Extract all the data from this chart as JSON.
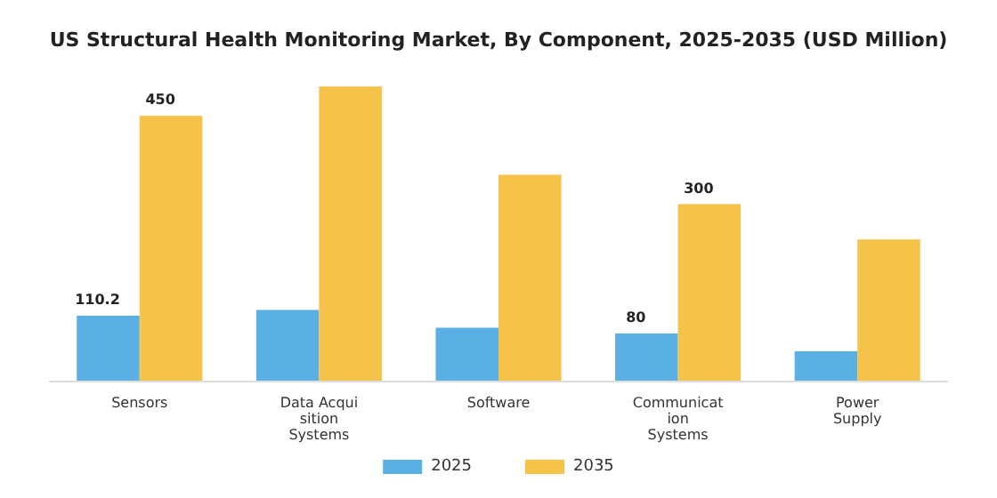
{
  "chart_data": {
    "type": "bar",
    "title": "US Structural Health Monitoring Market, By Component, 2025-2035 (USD Million)",
    "categories": [
      "Sensors",
      "Data Acqui\nsition\nSystems",
      "Software",
      "Communicat\nion\nSystems",
      "Power\nSupply"
    ],
    "series": [
      {
        "name": "2025",
        "color": "#5aafe3",
        "values": [
          110.2,
          120,
          90,
          80,
          50
        ],
        "value_labels": [
          "110.2",
          null,
          null,
          "80",
          null
        ]
      },
      {
        "name": "2035",
        "color": "#f5c24a",
        "values": [
          450,
          500,
          350,
          300,
          240
        ],
        "value_labels": [
          "450",
          null,
          null,
          "300",
          null
        ]
      }
    ],
    "legend": "bottom"
  }
}
